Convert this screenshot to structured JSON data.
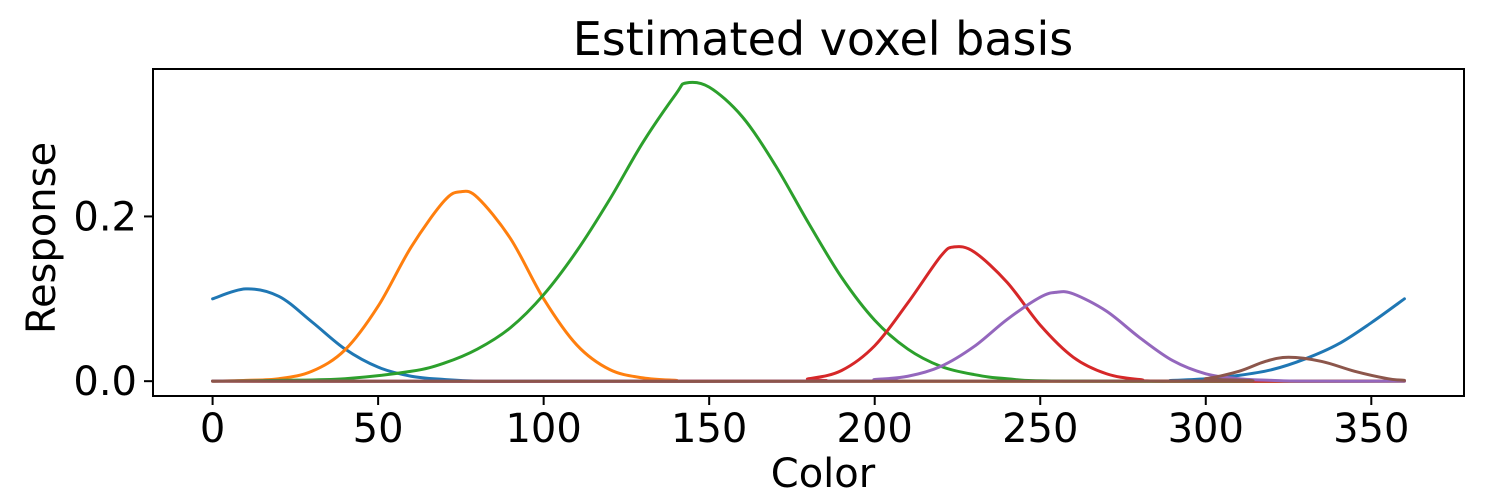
{
  "chart_data": {
    "type": "line",
    "title": "Estimated voxel basis",
    "xlabel": "Color",
    "ylabel": "Response",
    "xlim": [
      -18,
      378
    ],
    "ylim": [
      -0.018,
      0.379
    ],
    "xticks": [
      0,
      50,
      100,
      150,
      200,
      250,
      300,
      350
    ],
    "xtick_labels": [
      "0",
      "50",
      "100",
      "150",
      "200",
      "250",
      "300",
      "350"
    ],
    "yticks": [
      0.0,
      0.2
    ],
    "ytick_labels": [
      "0.0",
      "0.2"
    ],
    "grid": false,
    "legend": "none",
    "series": [
      {
        "color": "#1f77b4",
        "points": [
          [
            0,
            0.1
          ],
          [
            10,
            0.112
          ],
          [
            20,
            0.103
          ],
          [
            30,
            0.072
          ],
          [
            40,
            0.039
          ],
          [
            50,
            0.017
          ],
          [
            60,
            0.006
          ],
          [
            70,
            0.002
          ],
          [
            80,
            0.0
          ],
          [
            100,
            0.0
          ],
          [
            200,
            0.0
          ],
          [
            280,
            0.0
          ],
          [
            290,
            0.001
          ],
          [
            300,
            0.003
          ],
          [
            310,
            0.007
          ],
          [
            320,
            0.014
          ],
          [
            330,
            0.027
          ],
          [
            340,
            0.045
          ],
          [
            350,
            0.071
          ],
          [
            360,
            0.1
          ]
        ]
      },
      {
        "color": "#ff7f0e",
        "points": [
          [
            0,
            0.0
          ],
          [
            10,
            0.001
          ],
          [
            20,
            0.003
          ],
          [
            30,
            0.012
          ],
          [
            40,
            0.038
          ],
          [
            50,
            0.091
          ],
          [
            60,
            0.163
          ],
          [
            70,
            0.219
          ],
          [
            75,
            0.23
          ],
          [
            80,
            0.223
          ],
          [
            90,
            0.173
          ],
          [
            100,
            0.1
          ],
          [
            110,
            0.044
          ],
          [
            120,
            0.014
          ],
          [
            130,
            0.004
          ],
          [
            140,
            0.001
          ],
          [
            150,
            0.0
          ],
          [
            360,
            0.0
          ]
        ]
      },
      {
        "color": "#2ca02c",
        "points": [
          [
            0,
            0.0
          ],
          [
            20,
            0.001
          ],
          [
            40,
            0.003
          ],
          [
            60,
            0.012
          ],
          [
            70,
            0.022
          ],
          [
            80,
            0.039
          ],
          [
            90,
            0.065
          ],
          [
            100,
            0.105
          ],
          [
            110,
            0.158
          ],
          [
            120,
            0.221
          ],
          [
            130,
            0.29
          ],
          [
            140,
            0.349
          ],
          [
            143,
            0.362
          ],
          [
            150,
            0.357
          ],
          [
            160,
            0.321
          ],
          [
            170,
            0.262
          ],
          [
            180,
            0.192
          ],
          [
            190,
            0.126
          ],
          [
            200,
            0.074
          ],
          [
            210,
            0.039
          ],
          [
            220,
            0.018
          ],
          [
            230,
            0.008
          ],
          [
            240,
            0.003
          ],
          [
            260,
            0.0
          ],
          [
            360,
            0.0
          ]
        ]
      },
      {
        "color": "#d62728",
        "points": [
          [
            0,
            0.0
          ],
          [
            170,
            0.0
          ],
          [
            180,
            0.003
          ],
          [
            190,
            0.013
          ],
          [
            200,
            0.043
          ],
          [
            210,
            0.095
          ],
          [
            220,
            0.152
          ],
          [
            224,
            0.163
          ],
          [
            230,
            0.157
          ],
          [
            240,
            0.12
          ],
          [
            250,
            0.068
          ],
          [
            260,
            0.029
          ],
          [
            270,
            0.009
          ],
          [
            280,
            0.002
          ],
          [
            290,
            0.0
          ],
          [
            360,
            0.0
          ]
        ]
      },
      {
        "color": "#9467bd",
        "points": [
          [
            0,
            0.0
          ],
          [
            190,
            0.0
          ],
          [
            200,
            0.002
          ],
          [
            210,
            0.006
          ],
          [
            220,
            0.018
          ],
          [
            230,
            0.042
          ],
          [
            240,
            0.075
          ],
          [
            250,
            0.102
          ],
          [
            255,
            0.108
          ],
          [
            260,
            0.106
          ],
          [
            270,
            0.085
          ],
          [
            280,
            0.053
          ],
          [
            290,
            0.025
          ],
          [
            300,
            0.009
          ],
          [
            310,
            0.003
          ],
          [
            320,
            0.001
          ],
          [
            330,
            0.0
          ],
          [
            360,
            0.0
          ]
        ]
      },
      {
        "color": "#8c564b",
        "points": [
          [
            0,
            0.0
          ],
          [
            290,
            0.0
          ],
          [
            300,
            0.003
          ],
          [
            310,
            0.012
          ],
          [
            318,
            0.024
          ],
          [
            325,
            0.029
          ],
          [
            335,
            0.024
          ],
          [
            345,
            0.012
          ],
          [
            355,
            0.003
          ],
          [
            360,
            0.001
          ]
        ]
      }
    ]
  }
}
